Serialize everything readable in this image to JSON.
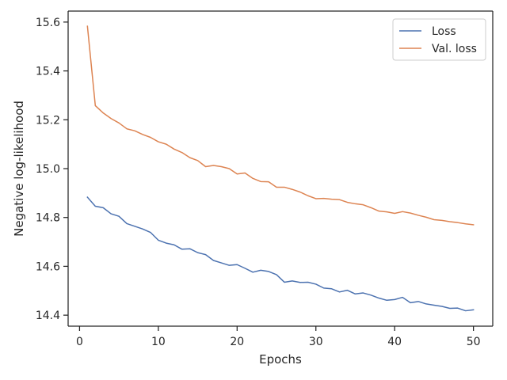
{
  "chart_data": {
    "type": "line",
    "title": "",
    "xlabel": "Epochs",
    "ylabel": "Negative log-likelihood",
    "xlim": [
      -1.45,
      52.45
    ],
    "ylim": [
      14.355,
      15.645
    ],
    "xticks": [
      0,
      10,
      20,
      30,
      40,
      50
    ],
    "yticks": [
      14.4,
      14.6,
      14.8,
      15.0,
      15.2,
      15.4,
      15.6
    ],
    "ytick_labels": [
      "14.4",
      "14.6",
      "14.8",
      "15.0",
      "15.2",
      "15.4",
      "15.6"
    ],
    "grid": false,
    "legend_position": "top-right",
    "x": [
      1,
      2,
      3,
      4,
      5,
      6,
      7,
      8,
      9,
      10,
      11,
      12,
      13,
      14,
      15,
      16,
      17,
      18,
      19,
      20,
      21,
      22,
      23,
      24,
      25,
      26,
      27,
      28,
      29,
      30,
      31,
      32,
      33,
      34,
      35,
      36,
      37,
      38,
      39,
      40,
      41,
      42,
      43,
      44,
      45,
      46,
      47,
      48,
      49,
      50
    ],
    "series": [
      {
        "name": "Loss",
        "color": "#4c72b0",
        "values": [
          14.883,
          14.846,
          14.84,
          14.815,
          14.805,
          14.775,
          14.764,
          14.753,
          14.739,
          14.707,
          14.695,
          14.688,
          14.67,
          14.672,
          14.656,
          14.648,
          14.624,
          14.614,
          14.604,
          14.607,
          14.592,
          14.576,
          14.584,
          14.579,
          14.566,
          14.535,
          14.54,
          14.534,
          14.535,
          14.527,
          14.511,
          14.508,
          14.495,
          14.502,
          14.487,
          14.491,
          14.482,
          14.47,
          14.461,
          14.464,
          14.473,
          14.451,
          14.456,
          14.446,
          14.441,
          14.436,
          14.428,
          14.429,
          14.418,
          14.422
        ]
      },
      {
        "name": "Val. loss",
        "color": "#dd8452",
        "values": [
          15.583,
          15.258,
          15.228,
          15.205,
          15.187,
          15.163,
          15.155,
          15.14,
          15.128,
          15.11,
          15.1,
          15.08,
          15.066,
          15.045,
          15.033,
          15.008,
          15.013,
          15.008,
          15.0,
          14.978,
          14.982,
          14.96,
          14.947,
          14.946,
          14.924,
          14.924,
          14.915,
          14.904,
          14.889,
          14.877,
          14.878,
          14.875,
          14.873,
          14.862,
          14.856,
          14.852,
          14.84,
          14.826,
          14.823,
          14.817,
          14.824,
          14.818,
          14.809,
          14.801,
          14.791,
          14.788,
          14.783,
          14.779,
          14.774,
          14.77
        ]
      }
    ]
  }
}
